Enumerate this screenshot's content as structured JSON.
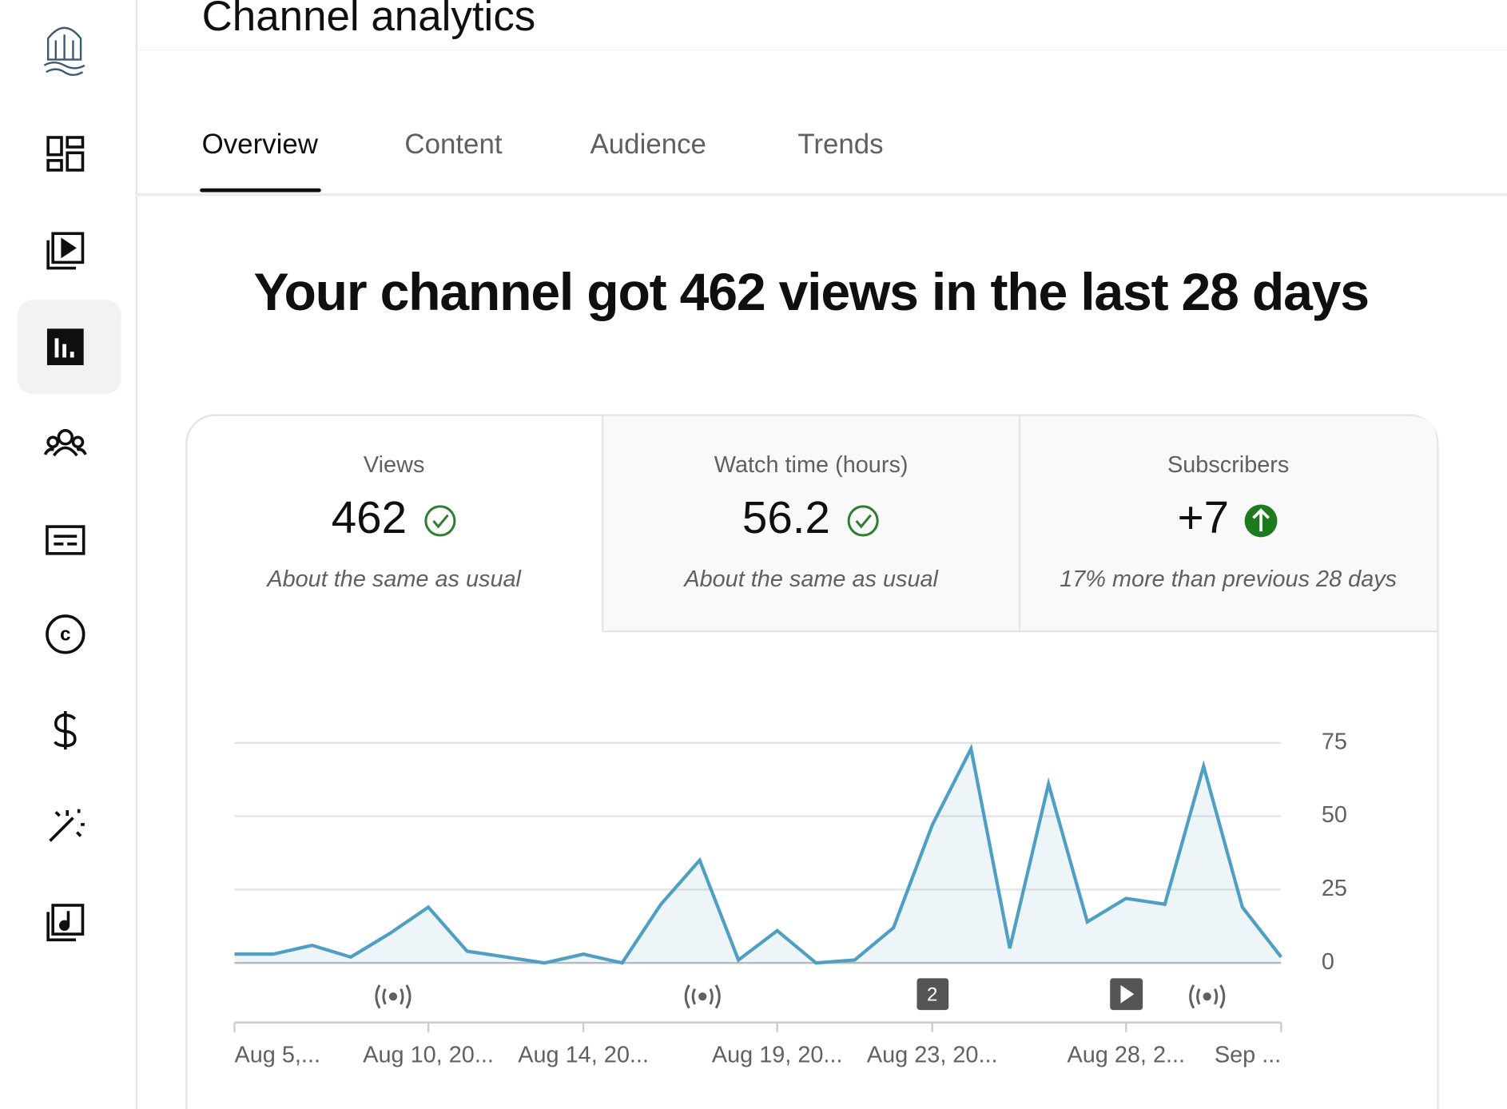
{
  "header": {
    "title": "Channel analytics",
    "tabs": [
      "Overview",
      "Content",
      "Audience",
      "Trends"
    ]
  },
  "headline": "Your channel got 462 views in the last 28 days",
  "metrics": [
    {
      "label": "Views",
      "value": "462",
      "note": "About the same as usual"
    },
    {
      "label": "Watch time (hours)",
      "value": "56.2",
      "note": "About the same as usual"
    },
    {
      "label": "Subscribers",
      "value": "+7",
      "note": "17% more than previous 28 days"
    }
  ],
  "chart_data": {
    "type": "line",
    "categories": [
      "Aug 5,...",
      null,
      null,
      null,
      null,
      "Aug 10, 20...",
      null,
      null,
      null,
      "Aug 14, 20...",
      null,
      null,
      null,
      null,
      "Aug 19, 20...",
      null,
      null,
      null,
      "Aug 23, 20...",
      null,
      null,
      null,
      null,
      "Aug 28, 2...",
      null,
      null,
      null,
      "Sep ..."
    ],
    "series": [
      {
        "name": "Views",
        "color": "#4f9ec4",
        "values": [
          3,
          3,
          6,
          2,
          10,
          19,
          4,
          2,
          0,
          3,
          0,
          20,
          35,
          1,
          11,
          0,
          1,
          12,
          47,
          73,
          5,
          61,
          14,
          22,
          20,
          67,
          19,
          2
        ]
      }
    ],
    "ylim": [
      0,
      75
    ],
    "yticks": [
      0,
      25,
      50,
      75
    ],
    "grid": true,
    "badge": "2"
  }
}
